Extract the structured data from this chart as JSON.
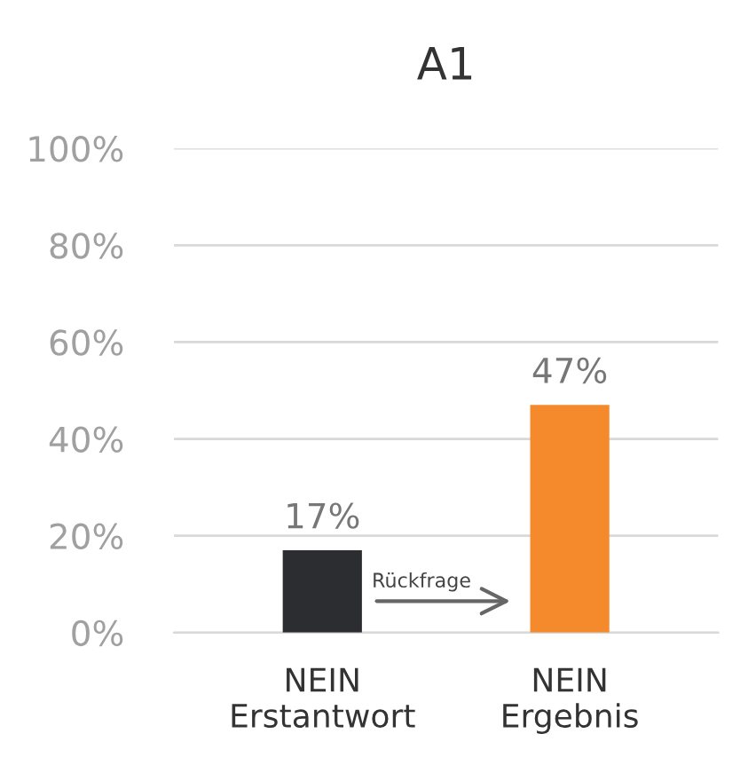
{
  "chart_data": {
    "type": "bar",
    "title": "A1",
    "categories": [
      "NEIN\nErstantwort",
      "NEIN\nErgebnis"
    ],
    "values": [
      17,
      47
    ],
    "colors": [
      "#2b2d31",
      "#f58a2d"
    ],
    "value_labels": [
      "17%",
      "47%"
    ],
    "ylim": [
      0,
      100
    ],
    "yticks": [
      {
        "value": 0,
        "label": "0%"
      },
      {
        "value": 20,
        "label": "20%"
      },
      {
        "value": 40,
        "label": "40%"
      },
      {
        "value": 60,
        "label": "60%"
      },
      {
        "value": 80,
        "label": "80%"
      },
      {
        "value": 100,
        "label": "100%"
      }
    ],
    "grid": "y",
    "annotations": [
      "Rückfrage"
    ]
  }
}
